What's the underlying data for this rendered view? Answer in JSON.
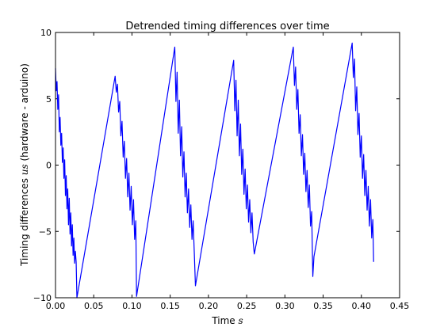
{
  "chart_data": {
    "type": "line",
    "title": "Detrended timing differences over time",
    "xlabel_prefix": "Time ",
    "xlabel_unit": "s",
    "ylabel_prefix": "Timing differences ",
    "ylabel_unit": "us",
    "ylabel_suffix": " (hardware - arduino)",
    "xlim": [
      0.0,
      0.45
    ],
    "ylim": [
      -10,
      10
    ],
    "xticks": [
      0.0,
      0.05,
      0.1,
      0.15,
      0.2,
      0.25,
      0.3,
      0.35,
      0.4,
      0.45
    ],
    "xtick_labels": [
      "0.00",
      "0.05",
      "0.10",
      "0.15",
      "0.20",
      "0.25",
      "0.30",
      "0.35",
      "0.40",
      "0.45"
    ],
    "yticks": [
      -10,
      -5,
      0,
      5,
      10
    ],
    "ytick_labels": [
      "−10",
      "−5",
      "0",
      "5",
      "10"
    ],
    "grid": false,
    "line_color": "#0000ff",
    "series": [
      {
        "x": [
          0.0,
          0.001,
          0.002,
          0.003,
          0.004,
          0.005,
          0.006,
          0.007,
          0.008,
          0.009,
          0.01,
          0.011,
          0.012,
          0.013,
          0.014,
          0.015,
          0.016,
          0.017,
          0.018,
          0.019,
          0.02,
          0.021,
          0.022,
          0.023,
          0.024,
          0.025,
          0.026,
          0.027,
          0.028,
          0.078,
          0.0795,
          0.081,
          0.0825,
          0.084,
          0.0855,
          0.087,
          0.0885,
          0.09,
          0.0915,
          0.093,
          0.0945,
          0.096,
          0.0975,
          0.099,
          0.1005,
          0.102,
          0.1035,
          0.105,
          0.106,
          0.156,
          0.1575,
          0.159,
          0.1605,
          0.162,
          0.1635,
          0.165,
          0.1665,
          0.168,
          0.1695,
          0.171,
          0.1725,
          0.174,
          0.1755,
          0.177,
          0.1785,
          0.18,
          0.1815,
          0.183,
          0.233,
          0.2345,
          0.236,
          0.2375,
          0.239,
          0.2405,
          0.242,
          0.2435,
          0.245,
          0.2465,
          0.248,
          0.2495,
          0.251,
          0.2525,
          0.254,
          0.2555,
          0.257,
          0.2585,
          0.26,
          0.261,
          0.311,
          0.3125,
          0.314,
          0.3155,
          0.317,
          0.3185,
          0.32,
          0.3215,
          0.323,
          0.3245,
          0.326,
          0.3275,
          0.329,
          0.3305,
          0.332,
          0.3335,
          0.335,
          0.3365,
          0.338,
          0.388,
          0.3895,
          0.391,
          0.3925,
          0.394,
          0.3955,
          0.397,
          0.3985,
          0.4,
          0.4015,
          0.403,
          0.4045,
          0.406,
          0.4075,
          0.409,
          0.4105,
          0.412,
          0.4135,
          0.415,
          0.416
        ],
        "y": [
          7.3,
          5.6,
          6.3,
          4.2,
          5.3,
          2.5,
          3.6,
          1.5,
          2.4,
          0.2,
          1.3,
          -1.0,
          0.4,
          -2.3,
          -0.8,
          -3.3,
          -1.8,
          -4.5,
          -2.5,
          -5.2,
          -3.6,
          -6.1,
          -4.5,
          -6.8,
          -5.5,
          -7.4,
          -6.5,
          -7.3,
          -10.0,
          6.7,
          5.5,
          6.1,
          4.0,
          4.8,
          2.2,
          3.3,
          0.6,
          1.8,
          -1.0,
          0.5,
          -2.4,
          -0.6,
          -3.4,
          -1.6,
          -4.5,
          -2.6,
          -5.6,
          -4.2,
          -9.9,
          8.9,
          4.8,
          7.0,
          2.4,
          4.9,
          0.7,
          2.9,
          -0.9,
          1.0,
          -2.4,
          -0.6,
          -3.6,
          -1.8,
          -4.7,
          -3.0,
          -5.6,
          -4.2,
          -6.6,
          -9.1,
          7.9,
          4.1,
          6.4,
          2.2,
          4.9,
          0.7,
          3.1,
          -0.7,
          1.2,
          -2.2,
          -0.3,
          -3.3,
          -1.5,
          -4.3,
          -2.6,
          -5.1,
          -3.6,
          -5.8,
          -6.7,
          -6.4,
          8.9,
          6.0,
          7.4,
          4.2,
          5.7,
          2.4,
          3.8,
          0.7,
          2.3,
          -0.7,
          0.9,
          -2.0,
          -0.4,
          -3.2,
          -1.5,
          -4.6,
          -3.5,
          -8.4,
          -6.9,
          9.2,
          6.6,
          8.0,
          4.1,
          5.9,
          2.3,
          3.9,
          0.6,
          2.2,
          -1.0,
          0.8,
          -2.3,
          -0.4,
          -3.4,
          -1.6,
          -4.6,
          -2.6,
          -5.5,
          -4.1,
          -7.3
        ]
      }
    ]
  }
}
